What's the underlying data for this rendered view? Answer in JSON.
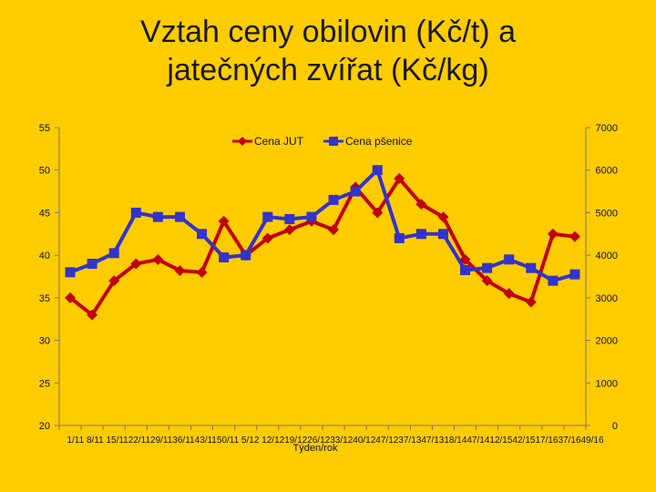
{
  "title_lines": [
    "Vztah ceny obilovin (Kč/t) a",
    "jatečných zvířat (Kč/kg)"
  ],
  "chart_data": {
    "type": "line",
    "title": "Vztah ceny obilovin (Kč/t) a jatečných zvířat (Kč/kg)",
    "xlabel": "Týden/rok",
    "ylabel": "",
    "y2label": "",
    "categories": [
      "1/11",
      "8/11",
      "15/11",
      "22/11",
      "29/11",
      "36/11",
      "43/11",
      "50/11",
      "5/12",
      "12/12",
      "19/12",
      "26/12",
      "33/12",
      "40/12",
      "47/12",
      "37/13",
      "47/13",
      "18/14",
      "47/14",
      "12/15",
      "42/15",
      "17/16",
      "37/16",
      "49/16"
    ],
    "tick_labels_text": "1/11 8/11 15/1122/1129/1136/1143/1150/11 5/12 12/1219/1226/1233/1240/1247/1237/1347/1318/1447/1412/1542/1517/1637/1649/16",
    "ylim": [
      20,
      55
    ],
    "y2lim": [
      0,
      7000
    ],
    "yticks": [
      20,
      25,
      30,
      35,
      40,
      45,
      50,
      55
    ],
    "y2ticks": [
      0,
      1000,
      2000,
      3000,
      4000,
      5000,
      6000,
      7000
    ],
    "grid": false,
    "legend_position": "top",
    "series": [
      {
        "name": "Cena JUT",
        "axis": "left",
        "color": "#C00000",
        "marker": "diamond",
        "values": [
          35,
          33,
          37,
          39,
          39.5,
          38.2,
          38,
          44,
          40,
          42,
          43,
          44,
          43,
          48,
          45,
          49,
          46,
          44.5,
          39.5,
          37,
          35.5,
          34.5,
          42.5,
          42.2
        ]
      },
      {
        "name": "Cena pšenice",
        "axis": "right",
        "color": "#3333CC",
        "marker": "square",
        "values": [
          3600,
          3800,
          4050,
          5000,
          4900,
          4900,
          4500,
          3950,
          4000,
          4900,
          4850,
          4900,
          5300,
          5500,
          6000,
          4400,
          4500,
          4500,
          3650,
          3700,
          3900,
          3700,
          3400,
          3550
        ]
      }
    ]
  }
}
